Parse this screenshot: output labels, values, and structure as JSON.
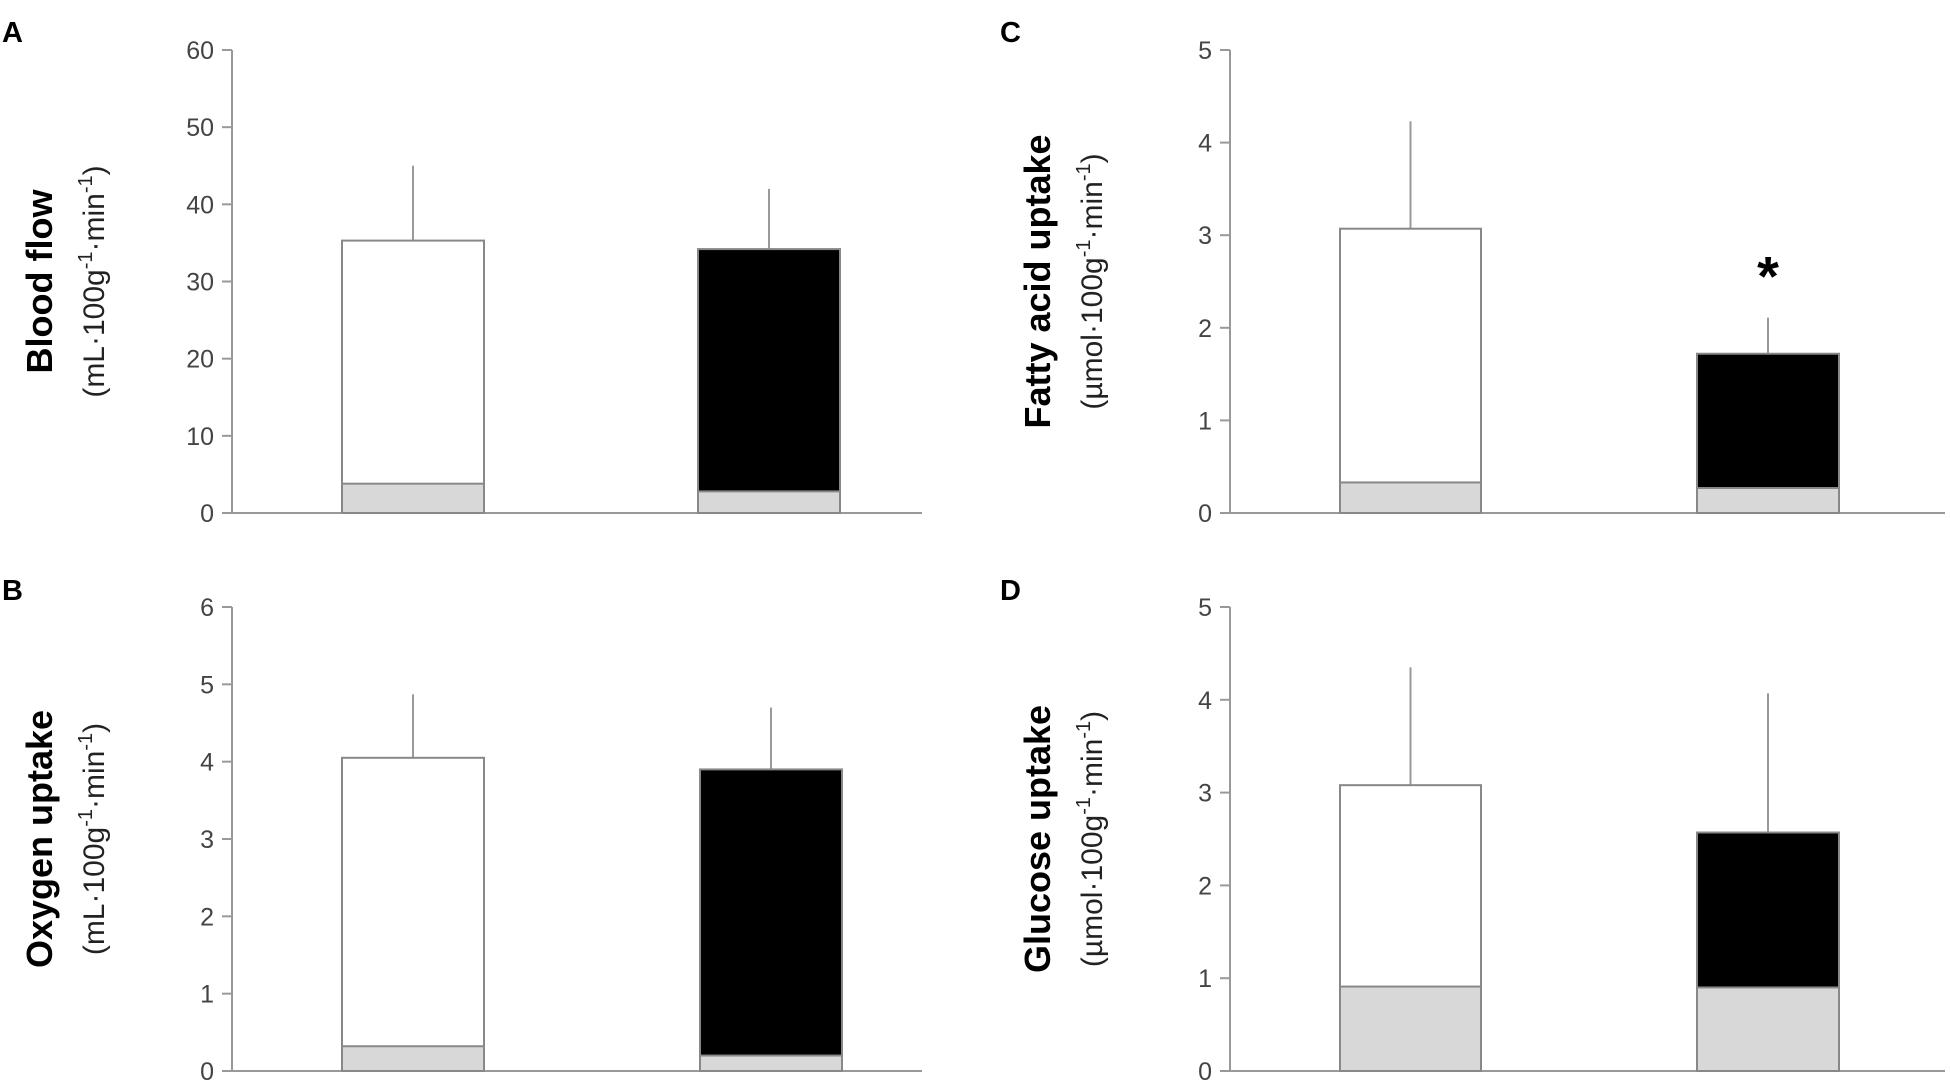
{
  "colors": {
    "axis": "#999999",
    "tick_text": "#444444",
    "bar_open_fill": "#ffffff",
    "bar_filled_fill": "#000000",
    "bar_stroke": "#888888",
    "baseline_fill": "#d8d8d8",
    "error_bar": "#999999"
  },
  "chart_data": [
    {
      "panel": "A",
      "type": "bar",
      "ylabel_title": "Blood flow",
      "ylabel_unit_base": "(mL·100g",
      "ylabel_unit_mid": "·min",
      "ylabel_unit_end": ")",
      "ylabel_exp": "-1",
      "ylim": [
        0,
        60
      ],
      "yticks": [
        "0",
        "10",
        "20",
        "30",
        "40",
        "50",
        "60"
      ],
      "grid": false,
      "annotation": "",
      "bars": [
        {
          "fill": "open",
          "value": 35.3,
          "error": 9.7,
          "baseline_value": 3.8
        },
        {
          "fill": "filled",
          "value": 34.2,
          "error": 7.8,
          "baseline_value": 2.8
        }
      ]
    },
    {
      "panel": "B",
      "type": "bar",
      "ylabel_title": "Oxygen uptake",
      "ylabel_unit_base": "(mL·100g",
      "ylabel_unit_mid": "·min",
      "ylabel_unit_end": ")",
      "ylabel_exp": "-1",
      "ylim": [
        0,
        6
      ],
      "yticks": [
        "0",
        "1",
        "2",
        "3",
        "4",
        "5",
        "6"
      ],
      "grid": false,
      "annotation": "",
      "bars": [
        {
          "fill": "open",
          "value": 4.05,
          "error": 0.82,
          "baseline_value": 0.32
        },
        {
          "fill": "filled",
          "value": 3.9,
          "error": 0.8,
          "baseline_value": 0.2
        }
      ]
    },
    {
      "panel": "C",
      "type": "bar",
      "ylabel_title": "Fatty acid uptake",
      "ylabel_unit_base": "(µmol·100g",
      "ylabel_unit_mid": "·min",
      "ylabel_unit_end": ")",
      "ylabel_exp": "-1",
      "ylim": [
        0,
        5
      ],
      "yticks": [
        "0",
        "1",
        "2",
        "3",
        "4",
        "5"
      ],
      "grid": false,
      "annotation": "*",
      "bars": [
        {
          "fill": "open",
          "value": 3.07,
          "error": 1.16,
          "baseline_value": 0.33
        },
        {
          "fill": "filled",
          "value": 1.72,
          "error": 0.39,
          "baseline_value": 0.27
        }
      ]
    },
    {
      "panel": "D",
      "type": "bar",
      "ylabel_title": "Glucose uptake",
      "ylabel_unit_base": "(µmol·100g",
      "ylabel_unit_mid": "·min",
      "ylabel_unit_end": ")",
      "ylabel_exp": "-1",
      "ylim": [
        0,
        5
      ],
      "yticks": [
        "0",
        "1",
        "2",
        "3",
        "4",
        "5"
      ],
      "grid": false,
      "annotation": "",
      "bars": [
        {
          "fill": "open",
          "value": 3.08,
          "error": 1.27,
          "baseline_value": 0.91
        },
        {
          "fill": "filled",
          "value": 2.57,
          "error": 1.5,
          "baseline_value": 0.9
        }
      ]
    }
  ]
}
